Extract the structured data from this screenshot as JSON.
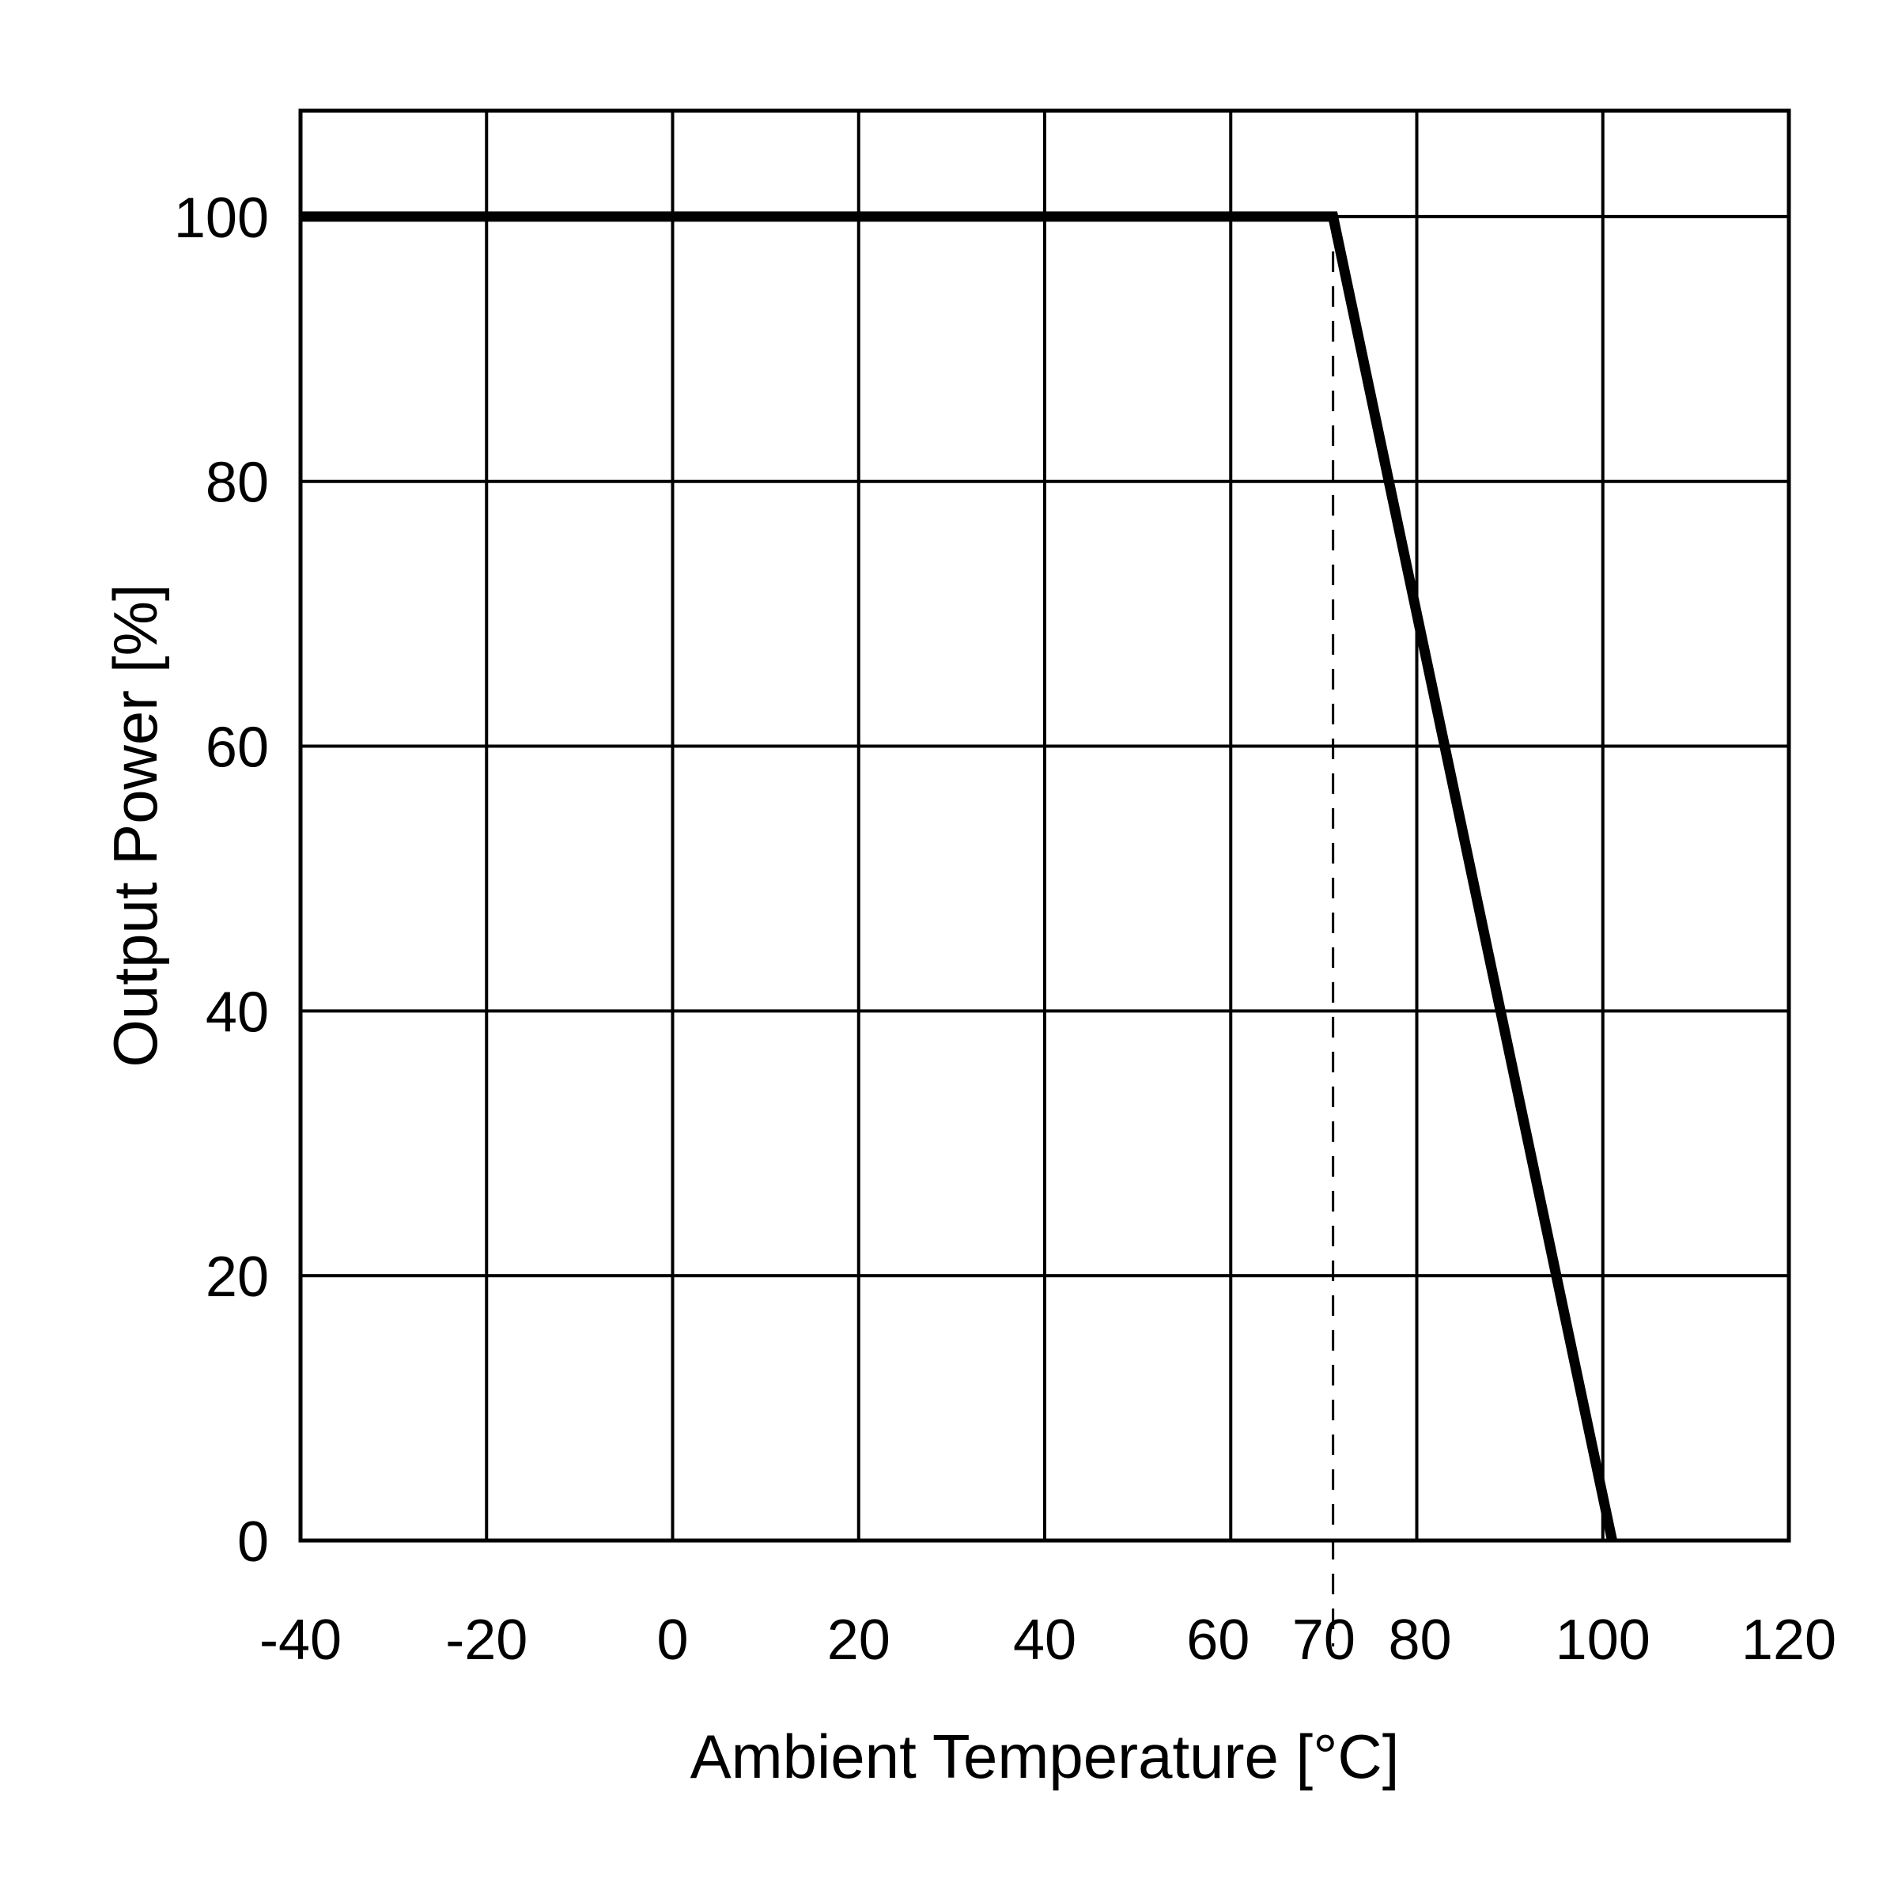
{
  "chart_data": {
    "type": "line",
    "title": "",
    "xlabel": "Ambient Temperature [°C]",
    "ylabel": "Output Power [%]",
    "x_ticks": [
      -40,
      -20,
      0,
      20,
      40,
      60,
      70,
      80,
      100,
      120
    ],
    "x_tick_labels": [
      "-40",
      "-20",
      "0",
      "20",
      "40",
      "60",
      "70",
      "80",
      "100",
      "120"
    ],
    "y_ticks": [
      0,
      20,
      40,
      60,
      80,
      100
    ],
    "y_tick_labels": [
      "0",
      "20",
      "40",
      "60",
      "80",
      "100"
    ],
    "xlim": [
      -40,
      120
    ],
    "ylim": [
      0,
      108
    ],
    "grid": true,
    "series": [
      {
        "x": [
          -40,
          71,
          101
        ],
        "y": [
          100,
          100,
          0
        ],
        "color": "#000000"
      }
    ],
    "reference_lines": [
      {
        "orientation": "vertical",
        "x": 71,
        "style": "dashed",
        "from_y": -8,
        "to_y": 100
      }
    ]
  }
}
